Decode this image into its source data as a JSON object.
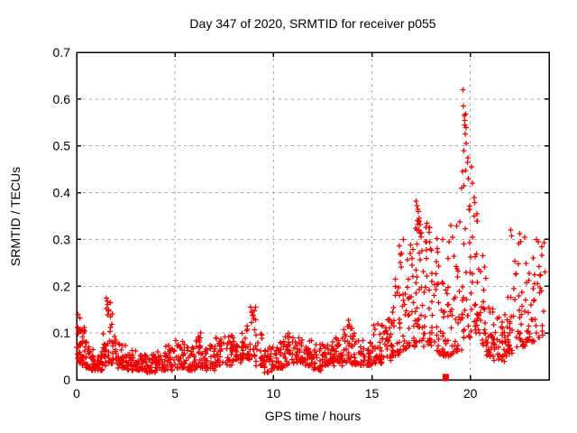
{
  "window": {
    "title": "Day 347 of 2020, SRMTID for receiver p055"
  },
  "colors": {
    "marker": "#ee0000",
    "grid": "#a8a8a8",
    "border": "#000000",
    "background": "#ffffff",
    "text": "#000000"
  },
  "chart_data": {
    "type": "scatter",
    "title": "Day 347 of 2020, SRMTID for receiver p055",
    "xlabel": "GPS time / hours",
    "ylabel": "SRMTID / TECUs",
    "xlim": [
      0,
      24
    ],
    "ylim": [
      0,
      0.7
    ],
    "x_ticks": [
      0,
      5,
      10,
      15,
      20
    ],
    "x_tick_labels": [
      "0",
      "5",
      "10",
      "15",
      "20"
    ],
    "x_grid_ticks": [
      5,
      10,
      15,
      20
    ],
    "y_ticks": [
      0,
      0.1,
      0.2,
      0.3,
      0.4,
      0.5,
      0.6,
      0.7
    ],
    "y_tick_labels": [
      "0",
      "0.1",
      "0.2",
      "0.3",
      "0.4",
      "0.5",
      "0.6",
      "0.7"
    ],
    "y_grid_ticks": [
      0.1,
      0.2,
      0.3,
      0.4,
      0.5,
      0.6
    ],
    "grid": true,
    "legend": false,
    "marker": "plus",
    "series_name": "SRMTID",
    "seed": 347,
    "skew": 1.6,
    "density_bins": [
      [
        0.0,
        0.2,
        20,
        0.035,
        0.135
      ],
      [
        0.2,
        0.45,
        22,
        0.03,
        0.12
      ],
      [
        0.45,
        0.7,
        20,
        0.025,
        0.095
      ],
      [
        0.7,
        1.0,
        22,
        0.02,
        0.07
      ],
      [
        1.0,
        1.3,
        22,
        0.02,
        0.06
      ],
      [
        1.3,
        1.5,
        14,
        0.03,
        0.1
      ],
      [
        1.5,
        1.8,
        20,
        0.035,
        0.17
      ],
      [
        1.8,
        2.1,
        18,
        0.03,
        0.11
      ],
      [
        2.1,
        2.5,
        26,
        0.025,
        0.08
      ],
      [
        2.5,
        3.0,
        30,
        0.02,
        0.065
      ],
      [
        3.0,
        3.5,
        30,
        0.02,
        0.055
      ],
      [
        3.5,
        4.0,
        30,
        0.015,
        0.055
      ],
      [
        4.0,
        4.5,
        30,
        0.02,
        0.06
      ],
      [
        4.5,
        5.0,
        30,
        0.02,
        0.08
      ],
      [
        5.0,
        5.5,
        30,
        0.025,
        0.085
      ],
      [
        5.5,
        6.0,
        28,
        0.02,
        0.07
      ],
      [
        6.0,
        6.5,
        30,
        0.025,
        0.095
      ],
      [
        6.5,
        7.0,
        28,
        0.02,
        0.075
      ],
      [
        7.0,
        7.5,
        30,
        0.03,
        0.09
      ],
      [
        7.5,
        8.0,
        30,
        0.03,
        0.095
      ],
      [
        8.0,
        8.5,
        30,
        0.035,
        0.1
      ],
      [
        8.5,
        8.8,
        16,
        0.04,
        0.12
      ],
      [
        8.8,
        9.1,
        16,
        0.05,
        0.155
      ],
      [
        9.1,
        9.5,
        20,
        0.03,
        0.1
      ],
      [
        9.5,
        10.0,
        28,
        0.015,
        0.07
      ],
      [
        10.0,
        10.5,
        30,
        0.025,
        0.08
      ],
      [
        10.5,
        11.0,
        30,
        0.03,
        0.105
      ],
      [
        11.0,
        11.5,
        30,
        0.035,
        0.09
      ],
      [
        11.5,
        12.0,
        30,
        0.03,
        0.085
      ],
      [
        12.0,
        12.5,
        30,
        0.02,
        0.08
      ],
      [
        12.5,
        13.0,
        30,
        0.03,
        0.08
      ],
      [
        13.0,
        13.5,
        30,
        0.03,
        0.09
      ],
      [
        13.5,
        14.0,
        30,
        0.035,
        0.125
      ],
      [
        14.0,
        14.5,
        30,
        0.03,
        0.1
      ],
      [
        14.5,
        15.0,
        30,
        0.03,
        0.085
      ],
      [
        15.0,
        15.5,
        30,
        0.035,
        0.12
      ],
      [
        15.5,
        16.0,
        30,
        0.04,
        0.13
      ],
      [
        16.0,
        16.4,
        24,
        0.05,
        0.21
      ],
      [
        16.4,
        16.8,
        26,
        0.06,
        0.29
      ],
      [
        16.8,
        17.2,
        28,
        0.07,
        0.31
      ],
      [
        17.2,
        17.6,
        34,
        0.08,
        0.38,
        1.8
      ],
      [
        17.6,
        18.0,
        28,
        0.07,
        0.33
      ],
      [
        18.0,
        18.4,
        26,
        0.06,
        0.3
      ],
      [
        18.4,
        18.8,
        24,
        0.05,
        0.25
      ],
      [
        18.8,
        19.2,
        24,
        0.05,
        0.31
      ],
      [
        19.2,
        19.6,
        22,
        0.06,
        0.36
      ],
      [
        19.6,
        20.0,
        30,
        0.09,
        0.6,
        2.1
      ],
      [
        20.0,
        20.4,
        26,
        0.1,
        0.45,
        1.8
      ],
      [
        20.4,
        20.8,
        24,
        0.07,
        0.27
      ],
      [
        20.8,
        21.2,
        26,
        0.05,
        0.16
      ],
      [
        21.2,
        21.8,
        34,
        0.04,
        0.14
      ],
      [
        21.8,
        22.2,
        26,
        0.05,
        0.18
      ],
      [
        22.2,
        22.8,
        30,
        0.07,
        0.31
      ],
      [
        22.8,
        23.3,
        28,
        0.08,
        0.26
      ],
      [
        23.3,
        23.8,
        20,
        0.09,
        0.3
      ]
    ],
    "outlier_points": [
      [
        0.08,
        0.14
      ],
      [
        0.15,
        0.132
      ],
      [
        1.52,
        0.175
      ],
      [
        1.55,
        0.168
      ],
      [
        1.58,
        0.161
      ],
      [
        1.5,
        0.152
      ],
      [
        1.62,
        0.147
      ],
      [
        6.3,
        0.1
      ],
      [
        8.85,
        0.155
      ],
      [
        8.9,
        0.147
      ],
      [
        8.95,
        0.139
      ],
      [
        9.0,
        0.131
      ],
      [
        13.8,
        0.127
      ],
      [
        13.85,
        0.118
      ],
      [
        15.3,
        0.12
      ],
      [
        16.2,
        0.215
      ],
      [
        16.5,
        0.27
      ],
      [
        16.6,
        0.3
      ],
      [
        17.25,
        0.382
      ],
      [
        17.3,
        0.372
      ],
      [
        17.35,
        0.36
      ],
      [
        17.4,
        0.345
      ],
      [
        17.45,
        0.332
      ],
      [
        17.8,
        0.335
      ],
      [
        17.9,
        0.315
      ],
      [
        18.3,
        0.302
      ],
      [
        18.6,
        0.3
      ],
      [
        19.0,
        0.33
      ],
      [
        19.1,
        0.305
      ],
      [
        19.62,
        0.62
      ],
      [
        19.65,
        0.585
      ],
      [
        19.7,
        0.565
      ],
      [
        19.71,
        0.545
      ],
      [
        19.75,
        0.525
      ],
      [
        19.78,
        0.505
      ],
      [
        19.68,
        0.49
      ],
      [
        19.85,
        0.465
      ],
      [
        19.6,
        0.445
      ],
      [
        19.9,
        0.43
      ],
      [
        19.55,
        0.41
      ],
      [
        20.05,
        0.455
      ],
      [
        20.1,
        0.42
      ],
      [
        20.2,
        0.35
      ],
      [
        22.05,
        0.32
      ],
      [
        22.1,
        0.308
      ],
      [
        22.5,
        0.312
      ],
      [
        22.55,
        0.295
      ],
      [
        23.35,
        0.3
      ],
      [
        23.2,
        0.26
      ]
    ],
    "event_marker": {
      "shape": "filled-square",
      "x": 18.75,
      "y": 0,
      "color": "#ee0000"
    }
  }
}
